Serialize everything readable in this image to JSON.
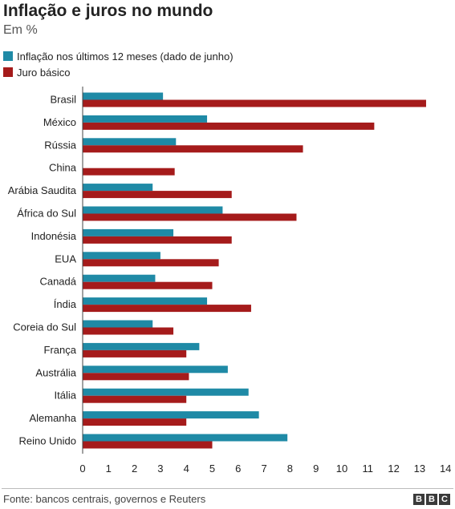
{
  "header": {
    "title": "Inflação e juros no mundo",
    "subtitle": "Em %"
  },
  "legend": [
    {
      "label": "Inflação nos últimos 12 meses (dado de junho)",
      "color": "#1f8aa6"
    },
    {
      "label": "Juro básico",
      "color": "#a51b1b"
    }
  ],
  "footer": {
    "source": "Fonte: bancos centrais, governos e Reuters",
    "logo_letters": [
      "B",
      "B",
      "C"
    ]
  },
  "chart_data": {
    "type": "bar",
    "orientation": "horizontal",
    "categories": [
      "Brasil",
      "México",
      "Rússia",
      "China",
      "Arábia Saudita",
      "África do Sul",
      "Indonésia",
      "EUA",
      "Canadá",
      "Índia",
      "Coreia do Sul",
      "França",
      "Austrália",
      "Itália",
      "Alemanha",
      "Reino Unido"
    ],
    "series": [
      {
        "name": "Inflação nos últimos 12 meses (dado de junho)",
        "color": "#1f8aa6",
        "values": [
          3.1,
          4.8,
          3.6,
          null,
          2.7,
          5.4,
          3.5,
          3.0,
          2.8,
          4.8,
          2.7,
          4.5,
          5.6,
          6.4,
          6.8,
          7.9
        ]
      },
      {
        "name": "Juro básico",
        "color": "#a51b1b",
        "values": [
          13.25,
          11.25,
          8.5,
          3.55,
          5.75,
          8.25,
          5.75,
          5.25,
          5.0,
          6.5,
          3.5,
          4.0,
          4.1,
          4.0,
          4.0,
          5.0
        ]
      }
    ],
    "xlim": [
      0,
      14
    ],
    "xticks": [
      0,
      1,
      2,
      3,
      4,
      5,
      6,
      7,
      8,
      9,
      10,
      11,
      12,
      13,
      14
    ],
    "grid": false,
    "legend_position": "top-left"
  }
}
